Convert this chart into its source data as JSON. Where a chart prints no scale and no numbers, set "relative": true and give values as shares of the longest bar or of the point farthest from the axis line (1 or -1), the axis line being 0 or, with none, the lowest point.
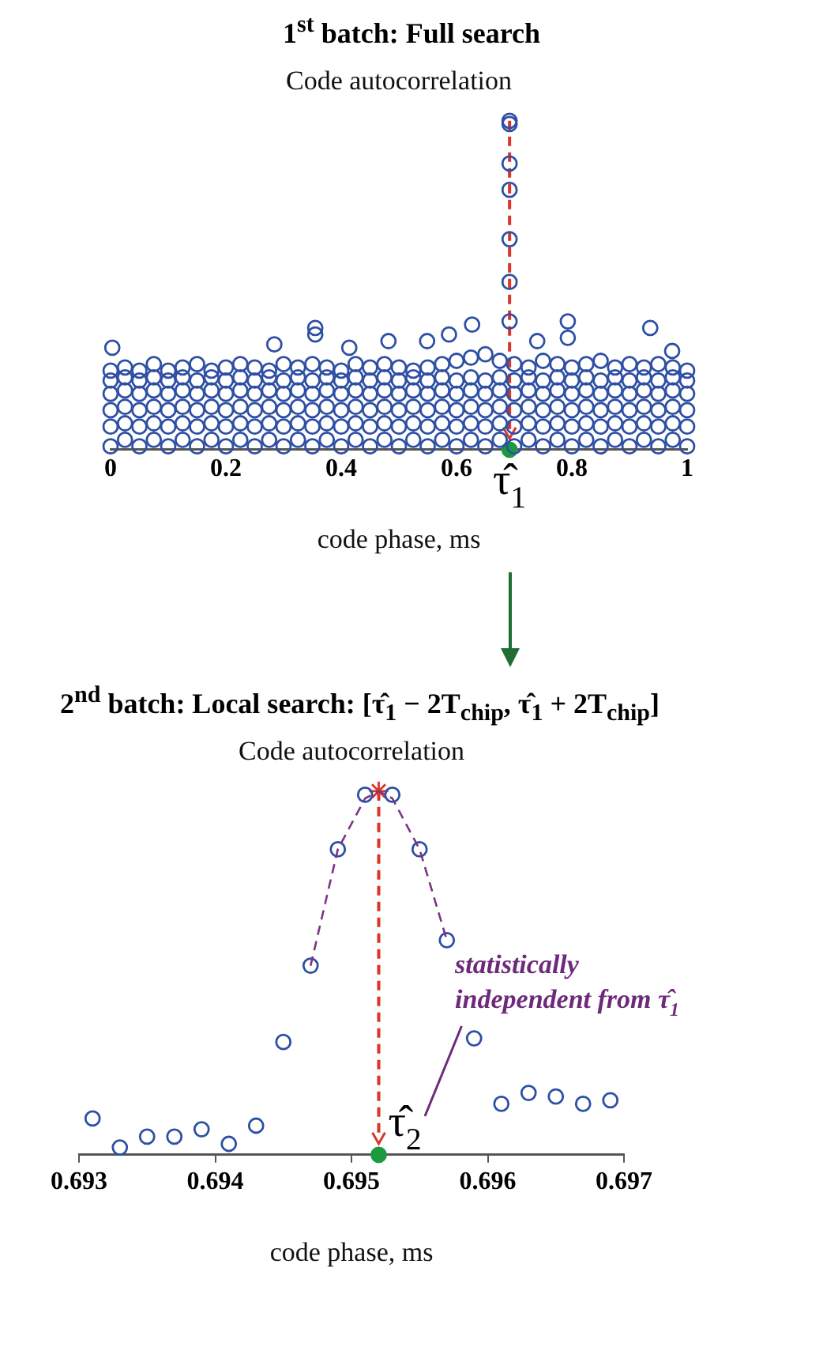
{
  "chart_data": [
    {
      "type": "scatter",
      "title": "1$^{st}$ batch: Full search",
      "subtitle": "Code autocorrelation",
      "xlabel": "code phase, ms",
      "relative": true,
      "marker": "circle",
      "x": [
        0,
        0.025,
        0.05,
        0.075,
        0.1,
        0.125,
        0.15,
        0.175,
        0.2,
        0.225,
        0.25,
        0.275,
        0.3,
        0.325,
        0.35,
        0.375,
        0.4,
        0.425,
        0.45,
        0.475,
        0.5,
        0.525,
        0.55,
        0.575,
        0.6,
        0.625,
        0.65,
        0.675,
        0.7,
        0.725,
        0.75,
        0.775,
        0.8,
        0.825,
        0.85,
        0.875,
        0.9,
        0.925,
        0.95,
        0.975,
        1
      ],
      "xlim": [
        0,
        1
      ],
      "xticks": [
        0,
        0.2,
        0.4,
        0.6,
        0.8,
        1
      ],
      "series": [
        {
          "color": "#2e4fa3",
          "values": [
            0.01,
            0.03,
            0.01,
            0.03,
            0.01,
            0.03,
            0.01,
            0.03,
            0.01,
            0.03,
            0.01,
            0.03,
            0.01,
            0.03,
            0.01,
            0.03,
            0.01,
            0.03,
            0.01,
            0.03,
            0.01,
            0.03,
            0.01,
            0.03,
            0.01,
            0.03,
            0.01,
            0.03,
            0.01,
            0.03,
            0.01,
            0.03,
            0.01,
            0.03,
            0.01,
            0.03,
            0.01,
            0.03,
            0.01,
            0.03,
            0.01
          ]
        },
        {
          "color": "#2e4fa3",
          "values": [
            0.07,
            0.08,
            0.07,
            0.08,
            0.07,
            0.08,
            0.07,
            0.08,
            0.07,
            0.08,
            0.07,
            0.08,
            0.07,
            0.08,
            0.07,
            0.08,
            0.07,
            0.08,
            0.07,
            0.08,
            0.07,
            0.08,
            0.07,
            0.08,
            0.07,
            0.08,
            0.07,
            0.08,
            0.07,
            0.08,
            0.07,
            0.08,
            0.07,
            0.08,
            0.07,
            0.08,
            0.07,
            0.08,
            0.07,
            0.08,
            0.07
          ]
        },
        {
          "color": "#2e4fa3",
          "values": [
            0.12,
            0.13,
            0.12,
            0.13,
            0.12,
            0.13,
            0.12,
            0.13,
            0.12,
            0.13,
            0.12,
            0.13,
            0.12,
            0.13,
            0.12,
            0.13,
            0.12,
            0.13,
            0.12,
            0.13,
            0.12,
            0.13,
            0.12,
            0.13,
            0.12,
            0.13,
            0.12,
            0.13,
            0.12,
            0.13,
            0.12,
            0.13,
            0.12,
            0.13,
            0.12,
            0.13,
            0.12,
            0.13,
            0.12,
            0.13,
            0.12
          ]
        },
        {
          "color": "#2e4fa3",
          "values": [
            0.17,
            0.18,
            0.17,
            0.18,
            0.17,
            0.18,
            0.17,
            0.18,
            0.17,
            0.18,
            0.17,
            0.18,
            0.17,
            0.18,
            0.17,
            0.18,
            0.17,
            0.18,
            0.17,
            0.18,
            0.17,
            0.18,
            0.17,
            0.18,
            0.17,
            0.18,
            0.17,
            0.18,
            0.17,
            0.18,
            0.17,
            0.18,
            0.17,
            0.18,
            0.17,
            0.18,
            0.17,
            0.18,
            0.17,
            0.18,
            0.17
          ]
        },
        {
          "color": "#2e4fa3",
          "values": [
            0.21,
            0.22,
            0.21,
            0.22,
            0.21,
            0.22,
            0.21,
            0.22,
            0.21,
            0.22,
            0.21,
            0.22,
            0.21,
            0.22,
            0.21,
            0.22,
            0.21,
            0.22,
            0.21,
            0.22,
            0.21,
            0.22,
            0.21,
            0.22,
            0.21,
            0.22,
            0.21,
            0.22,
            0.21,
            0.22,
            0.21,
            0.22,
            0.21,
            0.22,
            0.21,
            0.22,
            0.21,
            0.22,
            0.21,
            0.22,
            0.21
          ]
        },
        {
          "color": "#2e4fa3",
          "values": [
            0.24,
            0.25,
            0.24,
            0.26,
            0.24,
            0.25,
            0.26,
            0.24,
            0.25,
            0.26,
            0.25,
            0.24,
            0.26,
            0.25,
            0.26,
            0.25,
            0.24,
            0.26,
            0.25,
            0.26,
            0.25,
            0.24,
            0.25,
            0.26,
            0.27,
            0.28,
            0.29,
            0.27,
            0.26,
            0.25,
            0.27,
            0.26,
            0.25,
            0.26,
            0.27,
            0.25,
            0.26,
            0.25,
            0.26,
            0.25,
            0.24
          ]
        },
        {
          "color": "#2e4fa3",
          "x": [
            0.003,
            0.284,
            0.355,
            0.355,
            0.414,
            0.482,
            0.549,
            0.587,
            0.627,
            0.74,
            0.793,
            0.793,
            0.936,
            0.974
          ],
          "values": [
            0.31,
            0.32,
            0.35,
            0.37,
            0.31,
            0.33,
            0.33,
            0.35,
            0.38,
            0.33,
            0.34,
            0.39,
            0.37,
            0.3
          ]
        },
        {
          "color": "#2e4fa3",
          "x": [
            0.692,
            0.692,
            0.692,
            0.692,
            0.692,
            0.692,
            0.692
          ],
          "values": [
            1,
            0.99,
            0.87,
            0.79,
            0.64,
            0.51,
            0.39
          ]
        },
        {
          "color": "#1e9a3e",
          "x": [
            0.692
          ],
          "values": [
            0
          ]
        }
      ],
      "ref_lines": [
        {
          "axis": "x",
          "value": 0.692,
          "color": "#d9362b",
          "line_style": "dashed"
        }
      ],
      "annotations": [
        {
          "text": "τ̂$_{1}$",
          "x": 0.692,
          "y": 0
        }
      ]
    },
    {
      "type": "scatter",
      "title": "2$^{nd}$ batch: Local search: [τ̂$_{1}$ − 2T$_{chip}$, τ̂$_{1}$ + 2T$_{chip}$]",
      "subtitle": "Code autocorrelation",
      "xlabel": "code phase, ms",
      "relative": true,
      "marker": "circle",
      "xlim": [
        0.693,
        0.697
      ],
      "xticks": [
        0.693,
        0.694,
        0.695,
        0.696,
        0.697
      ],
      "series": [
        {
          "type": "line",
          "color": "#7b3585",
          "marker": "none",
          "line_style": "dashed",
          "x": [
            0.6947,
            0.6949,
            0.6951,
            0.6952,
            0.6953,
            0.6955,
            0.6957
          ],
          "values": [
            0.52,
            0.84,
            0.98,
            1,
            0.98,
            0.84,
            0.59
          ]
        },
        {
          "color": "#2e4fa3",
          "x": [
            0.6931,
            0.6933,
            0.6935,
            0.6937,
            0.6939,
            0.6941,
            0.6943,
            0.6945,
            0.6947,
            0.6949,
            0.6951,
            0.6953,
            0.6955,
            0.6957,
            0.6959,
            0.6961,
            0.6963,
            0.6965,
            0.6967,
            0.6969
          ],
          "values": [
            0.1,
            0.02,
            0.05,
            0.05,
            0.07,
            0.03,
            0.08,
            0.31,
            0.52,
            0.84,
            0.99,
            0.99,
            0.84,
            0.59,
            0.32,
            0.14,
            0.17,
            0.16,
            0.14,
            0.15
          ]
        },
        {
          "color": "#d9362b",
          "marker": "cross",
          "x": [
            0.6952
          ],
          "values": [
            1
          ]
        },
        {
          "color": "#1e9a3e",
          "x": [
            0.6952
          ],
          "values": [
            0
          ]
        }
      ],
      "ref_lines": [
        {
          "axis": "x",
          "value": 0.6952,
          "color": "#d9362b",
          "line_style": "dashed"
        }
      ],
      "annotations": [
        {
          "text": "τ̂$_{2}$",
          "x": 0.6952,
          "y": 0
        },
        "statistically independent from τ̂$_{1}$"
      ]
    }
  ]
}
